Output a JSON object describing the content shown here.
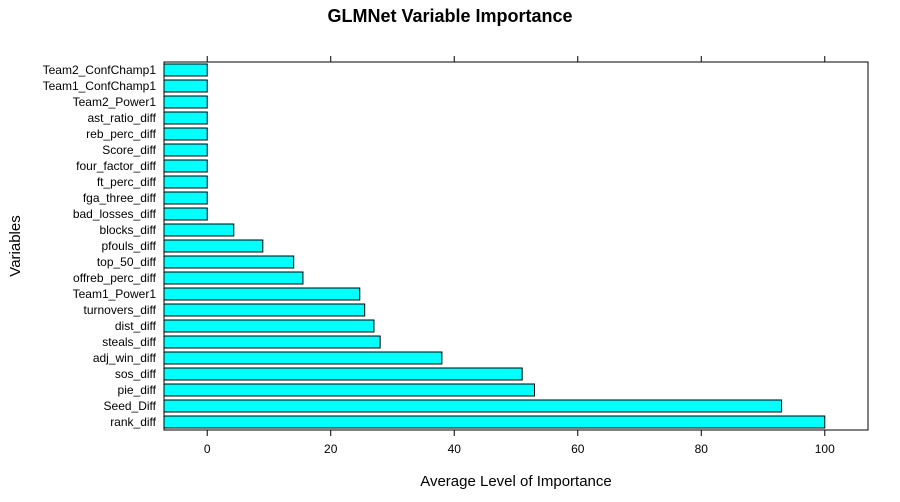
{
  "chart_data": {
    "type": "bar",
    "orientation": "horizontal",
    "title": "GLMNet Variable Importance",
    "xlabel": "Average Level of Importance",
    "ylabel": "Variables",
    "xlim": [
      -7,
      107
    ],
    "xticks": [
      0,
      20,
      40,
      60,
      80,
      100
    ],
    "bar_color": "#00ffff",
    "grid": false,
    "categories": [
      "rank_diff",
      "Seed_Diff",
      "pie_diff",
      "sos_diff",
      "adj_win_diff",
      "steals_diff",
      "dist_diff",
      "turnovers_diff",
      "Team1_Power1",
      "offreb_perc_diff",
      "top_50_diff",
      "pfouls_diff",
      "blocks_diff",
      "bad_losses_diff",
      "fga_three_diff",
      "ft_perc_diff",
      "four_factor_diff",
      "Score_diff",
      "reb_perc_diff",
      "ast_ratio_diff",
      "Team2_Power1",
      "Team1_ConfChamp1",
      "Team2_ConfChamp1"
    ],
    "values": [
      100,
      93,
      53,
      51,
      38,
      28,
      27,
      25.5,
      24.7,
      15.5,
      14,
      9,
      4.3,
      0,
      0,
      0,
      0,
      0,
      0,
      0,
      0,
      0,
      0
    ]
  }
}
